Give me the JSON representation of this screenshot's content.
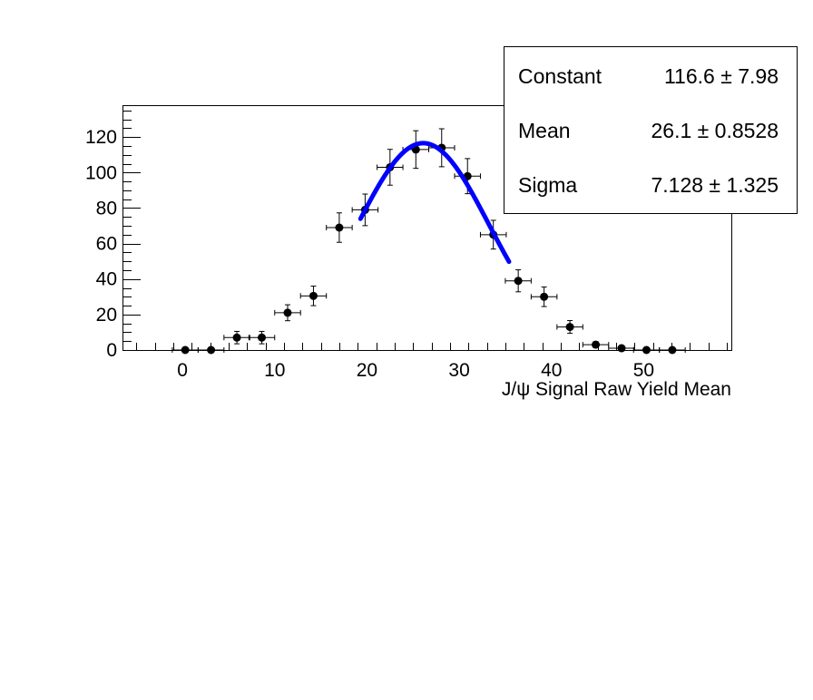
{
  "chart_data": {
    "type": "scatter",
    "title": "",
    "xlabel": "J/ψ Signal Raw Yield Mean",
    "ylabel": "",
    "xlim": [
      -6.5,
      59.5
    ],
    "ylim": [
      0,
      138
    ],
    "x_ticks": [
      "0",
      "10",
      "20",
      "30",
      "40",
      "50"
    ],
    "y_ticks": [
      "0",
      "20",
      "40",
      "60",
      "80",
      "100",
      "120"
    ],
    "grid": false,
    "legend": "none",
    "bin_half_width": 1.4,
    "series": [
      {
        "style": "markers-with-error-bars",
        "color": "#000000",
        "points": [
          {
            "x": 0.3,
            "y": 0,
            "yerr": 0
          },
          {
            "x": 3.1,
            "y": 0,
            "yerr": 0
          },
          {
            "x": 5.9,
            "y": 7,
            "yerr": 3.5
          },
          {
            "x": 8.6,
            "y": 7,
            "yerr": 3.5
          },
          {
            "x": 11.4,
            "y": 21,
            "yerr": 4.5
          },
          {
            "x": 14.2,
            "y": 30.5,
            "yerr": 5.5
          },
          {
            "x": 17.0,
            "y": 69,
            "yerr": 8.3
          },
          {
            "x": 19.8,
            "y": 79,
            "yerr": 8.9
          },
          {
            "x": 22.5,
            "y": 103,
            "yerr": 10.1
          },
          {
            "x": 25.3,
            "y": 113,
            "yerr": 10.6
          },
          {
            "x": 28.1,
            "y": 114,
            "yerr": 10.7
          },
          {
            "x": 30.9,
            "y": 98,
            "yerr": 9.9
          },
          {
            "x": 33.7,
            "y": 65,
            "yerr": 8.1
          },
          {
            "x": 36.4,
            "y": 39,
            "yerr": 6.2
          },
          {
            "x": 39.2,
            "y": 30,
            "yerr": 5.5
          },
          {
            "x": 42.0,
            "y": 13,
            "yerr": 3.6
          },
          {
            "x": 44.8,
            "y": 3,
            "yerr": 1.7
          },
          {
            "x": 47.6,
            "y": 1,
            "yerr": 1
          },
          {
            "x": 50.3,
            "y": 0,
            "yerr": 0
          },
          {
            "x": 53.1,
            "y": 0,
            "yerr": 0
          }
        ]
      },
      {
        "style": "gaussian-fit-line",
        "color": "#0000ff",
        "constant": 116.6,
        "mean": 26.1,
        "sigma": 7.128,
        "x_range": [
          19.3,
          35.4
        ]
      }
    ]
  },
  "stats": {
    "rows": [
      {
        "name": "Constant",
        "value": "116.6 ±  7.98"
      },
      {
        "name": "Mean",
        "value": "26.1 ± 0.8528"
      },
      {
        "name": "Sigma",
        "value": "7.128 ± 1.325"
      }
    ]
  }
}
